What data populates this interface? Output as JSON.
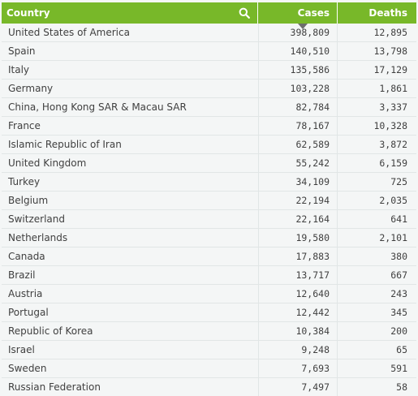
{
  "table": {
    "columns": {
      "country": "Country",
      "cases": "Cases",
      "deaths": "Deaths"
    },
    "sort_column": "Cases",
    "rows": [
      {
        "country": "United States of America",
        "cases": "398,809",
        "deaths": "12,895"
      },
      {
        "country": "Spain",
        "cases": "140,510",
        "deaths": "13,798"
      },
      {
        "country": "Italy",
        "cases": "135,586",
        "deaths": "17,129"
      },
      {
        "country": "Germany",
        "cases": "103,228",
        "deaths": "1,861"
      },
      {
        "country": "China, Hong Kong SAR & Macau SAR",
        "cases": "82,784",
        "deaths": "3,337"
      },
      {
        "country": "France",
        "cases": "78,167",
        "deaths": "10,328"
      },
      {
        "country": "Islamic Republic of Iran",
        "cases": "62,589",
        "deaths": "3,872"
      },
      {
        "country": "United Kingdom",
        "cases": "55,242",
        "deaths": "6,159"
      },
      {
        "country": "Turkey",
        "cases": "34,109",
        "deaths": "725"
      },
      {
        "country": "Belgium",
        "cases": "22,194",
        "deaths": "2,035"
      },
      {
        "country": "Switzerland",
        "cases": "22,164",
        "deaths": "641"
      },
      {
        "country": "Netherlands",
        "cases": "19,580",
        "deaths": "2,101"
      },
      {
        "country": "Canada",
        "cases": "17,883",
        "deaths": "380"
      },
      {
        "country": "Brazil",
        "cases": "13,717",
        "deaths": "667"
      },
      {
        "country": "Austria",
        "cases": "12,640",
        "deaths": "243"
      },
      {
        "country": "Portugal",
        "cases": "12,442",
        "deaths": "345"
      },
      {
        "country": "Republic of Korea",
        "cases": "10,384",
        "deaths": "200"
      },
      {
        "country": "Israel",
        "cases": "9,248",
        "deaths": "65"
      },
      {
        "country": "Sweden",
        "cases": "7,693",
        "deaths": "591"
      },
      {
        "country": "Russian Federation",
        "cases": "7,497",
        "deaths": "58"
      }
    ]
  },
  "colors": {
    "header_bg": "#78b829",
    "header_text": "#ffffff",
    "page_bg": "#f4f6f6",
    "grid_line": "#e1e6e6"
  },
  "icons": {
    "search": "search-icon",
    "sort": "sort-descending-icon"
  }
}
